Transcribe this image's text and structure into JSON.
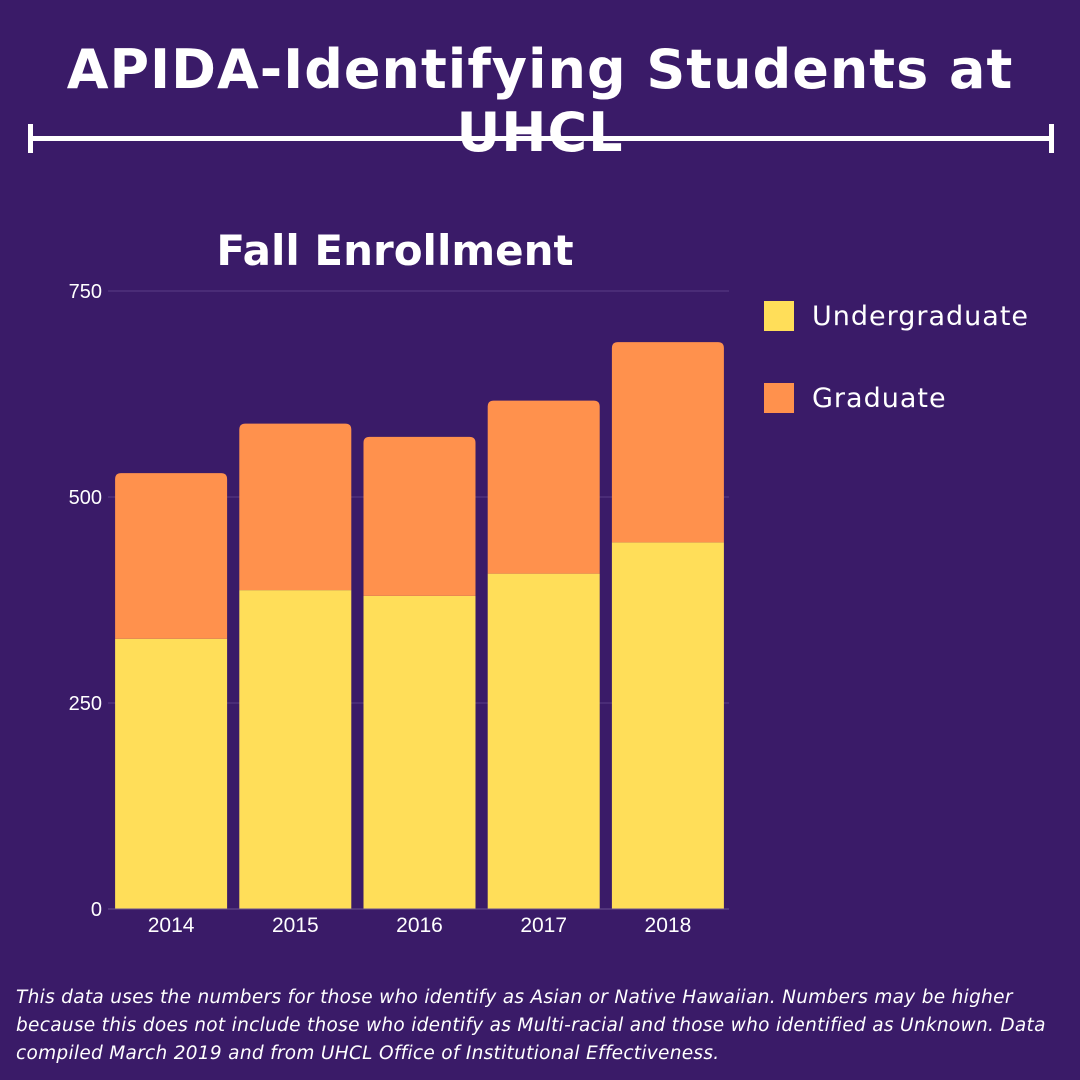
{
  "title": "APIDA-Identifying Students at UHCL",
  "footnote": "This data uses the numbers for those who identify as Asian or Native Hawaiian. Numbers may be higher because this does not include those who identify as Multi-racial and those who identified as Unknown. Data compiled March 2019 and from UHCL Office of Institutional Effectiveness.",
  "chart_data": {
    "type": "bar",
    "stacked": true,
    "title": "Fall Enrollment",
    "categories": [
      "2014",
      "2015",
      "2016",
      "2017",
      "2018"
    ],
    "series": [
      {
        "name": "Undergraduate",
        "color": "#ffde59",
        "values": [
          328,
          387,
          380,
          407,
          445
        ]
      },
      {
        "name": "Graduate",
        "color": "#ff914d",
        "values": [
          201,
          202,
          193,
          210,
          243
        ]
      }
    ],
    "yticks": [
      "0",
      "250",
      "500",
      "750"
    ],
    "ylim": [
      0,
      750
    ],
    "grid": true,
    "legend": "right"
  }
}
